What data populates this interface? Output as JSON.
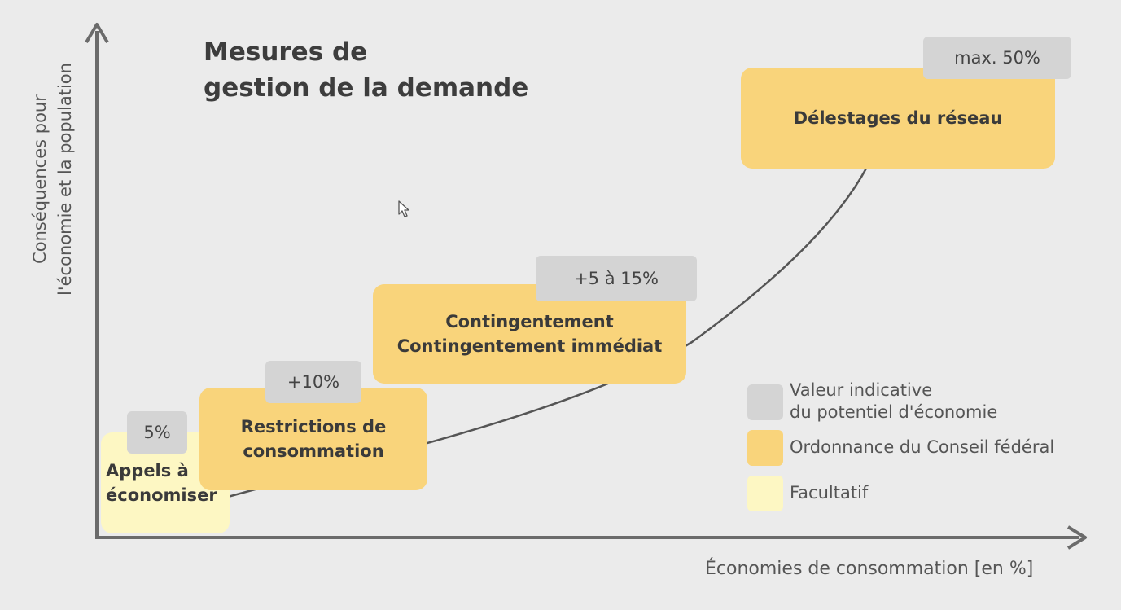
{
  "title": [
    "Mesures de",
    "gestion de la demande"
  ],
  "y_axis_label": [
    "Conséquences pour",
    "l'économie et la population"
  ],
  "x_axis_label": "Économies de consommation [en %]",
  "measures": [
    {
      "label": [
        "Appels à",
        "économiser"
      ],
      "value": "5%",
      "category": "facultatif"
    },
    {
      "label": [
        "Restrictions de",
        "consommation"
      ],
      "value": "+10%",
      "category": "ordonnance"
    },
    {
      "label": [
        "Contingentement",
        "Contingentement immédiat"
      ],
      "value": "+5 à 15%",
      "category": "ordonnance"
    },
    {
      "label": [
        "Délestages du réseau"
      ],
      "value": "max. 50%",
      "category": "ordonnance"
    }
  ],
  "legend": [
    {
      "label": [
        "Valeur indicative",
        "du potentiel d'économie"
      ],
      "color": "#d4d4d4"
    },
    {
      "label": [
        "Ordonnance du Conseil fédéral"
      ],
      "color": "#f9d47b"
    },
    {
      "label": [
        "Facultatif"
      ],
      "color": "#fdf7c3"
    }
  ],
  "colors": {
    "background": "#ebebeb",
    "axis": "#6b6b6b",
    "curve": "#555555"
  }
}
